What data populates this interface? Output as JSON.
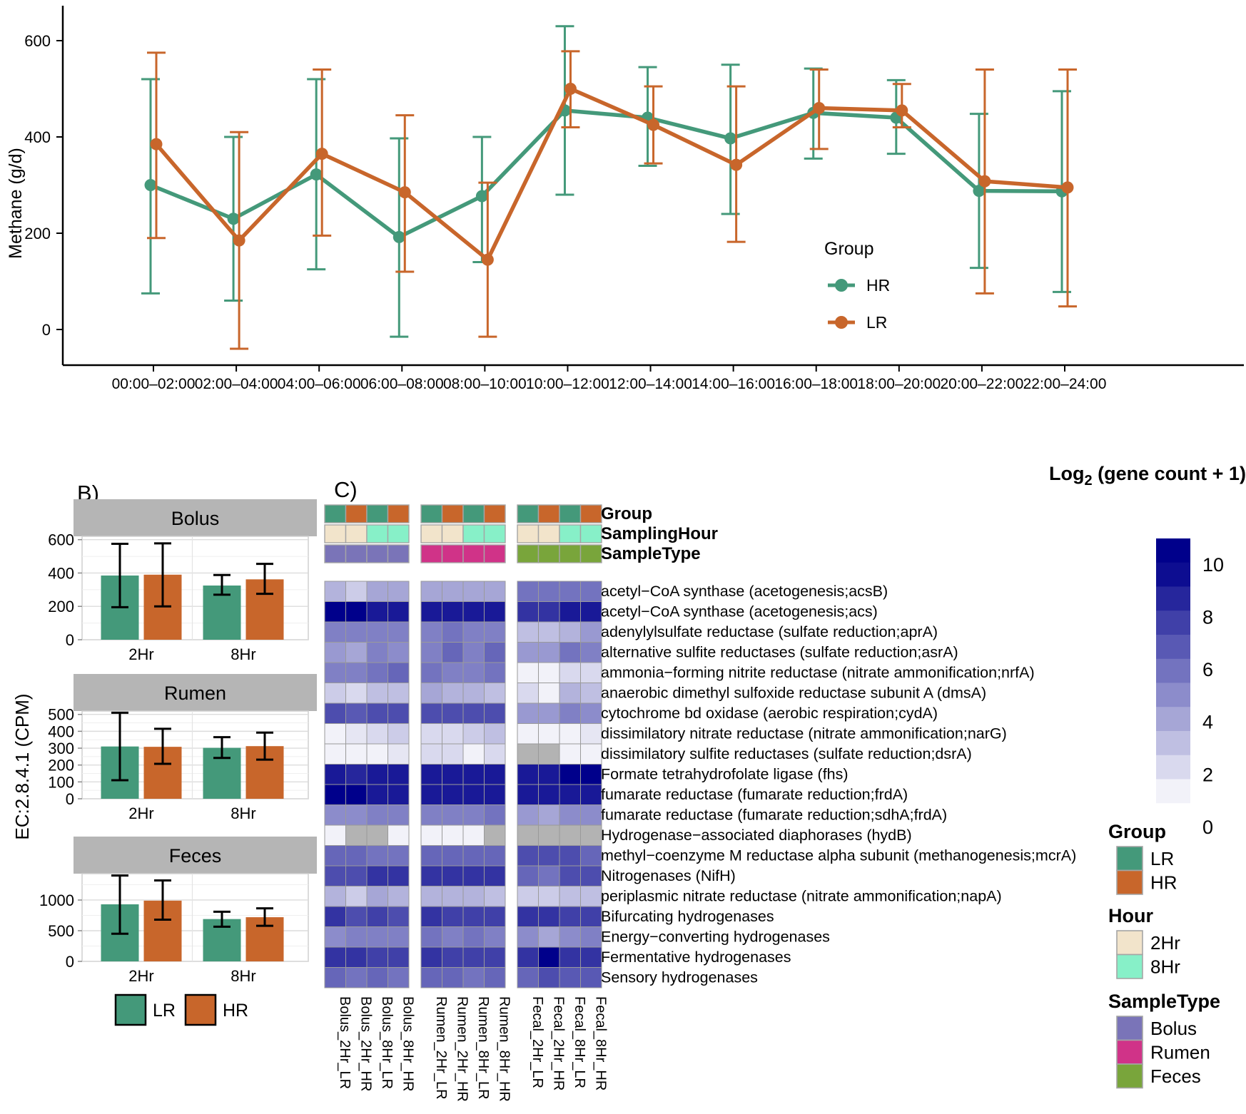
{
  "colors": {
    "green": "#44997A",
    "orange": "#C8662B",
    "heat_low": "#ffffff",
    "heat_high": "#00008B",
    "na_gray": "#b3b3b3",
    "hour_2hr": "#F2E4CB",
    "hour_8hr": "#87F0C8",
    "type_bolus": "#7A74B8",
    "type_rumen": "#D03388",
    "type_feces": "#79A53B",
    "strip_bg": "#B5B5B5",
    "axis_text": "#3d3d3d"
  },
  "chart_data": [
    {
      "id": "methane",
      "type": "line",
      "ylabel": "Methane (g/d)",
      "yticks": [
        0,
        200,
        400,
        600
      ],
      "ylim": [
        -75,
        665
      ],
      "grid": false,
      "legend_title": "Group",
      "legend_position": "inside-right",
      "categories": [
        "00:00–02:00",
        "02:00–04:00",
        "04:00–06:00",
        "06:00–08:00",
        "08:00–10:00",
        "10:00–12:00",
        "12:00–14:00",
        "14:00–16:00",
        "16:00–18:00",
        "18:00–20:00",
        "20:00–22:00",
        "22:00–24:00"
      ],
      "series": [
        {
          "name": "HR",
          "color_key": "green",
          "values": [
            300,
            230,
            322,
            192,
            277,
            455,
            440,
            397,
            450,
            440,
            288,
            287
          ],
          "err_low": [
            75,
            60,
            125,
            -15,
            140,
            280,
            340,
            240,
            355,
            365,
            128,
            78
          ],
          "err_high": [
            520,
            400,
            520,
            397,
            400,
            630,
            545,
            550,
            542,
            518,
            448,
            495
          ]
        },
        {
          "name": "LR",
          "color_key": "orange",
          "values": [
            385,
            185,
            365,
            285,
            145,
            500,
            425,
            342,
            460,
            455,
            308,
            295
          ],
          "err_low": [
            190,
            -40,
            195,
            120,
            -15,
            420,
            345,
            182,
            375,
            420,
            75,
            48
          ],
          "err_high": [
            575,
            410,
            540,
            445,
            305,
            578,
            505,
            505,
            540,
            510,
            540,
            540
          ]
        }
      ]
    },
    {
      "id": "ec_bars",
      "type": "bar",
      "label": "B)",
      "ylabel": "EC:2.8.4.1 (CPM)",
      "categories": [
        "2Hr",
        "8Hr"
      ],
      "facets": [
        {
          "title": "Bolus",
          "yticks": [
            0,
            200,
            400,
            600
          ],
          "ylim": [
            0,
            620
          ],
          "series": [
            {
              "name": "LR",
              "color_key": "green",
              "values": [
                385,
                325
              ],
              "err_low": [
                195,
                270
              ],
              "err_high": [
                575,
                388
              ]
            },
            {
              "name": "HR",
              "color_key": "orange",
              "values": [
                390,
                362
              ],
              "err_low": [
                200,
                275
              ],
              "err_high": [
                578,
                455
              ]
            }
          ]
        },
        {
          "title": "Rumen",
          "yticks": [
            0,
            100,
            200,
            300,
            400,
            500
          ],
          "ylim": [
            0,
            520
          ],
          "series": [
            {
              "name": "LR",
              "color_key": "green",
              "values": [
                310,
                302
              ],
              "err_low": [
                110,
                242
              ],
              "err_high": [
                510,
                365
              ]
            },
            {
              "name": "HR",
              "color_key": "orange",
              "values": [
                308,
                312
              ],
              "err_low": [
                207,
                232
              ],
              "err_high": [
                415,
                392
              ]
            }
          ]
        },
        {
          "title": "Feces",
          "yticks": [
            0,
            500,
            1000
          ],
          "ylim": [
            0,
            1430
          ],
          "series": [
            {
              "name": "LR",
              "color_key": "green",
              "values": [
                930,
                690
              ],
              "err_low": [
                450,
                565
              ],
              "err_high": [
                1400,
                810
              ]
            },
            {
              "name": "HR",
              "color_key": "orange",
              "values": [
                990,
                720
              ],
              "err_low": [
                680,
                580
              ],
              "err_high": [
                1320,
                865
              ]
            }
          ]
        }
      ],
      "legend": [
        {
          "label": "LR",
          "color_key": "green"
        },
        {
          "label": "HR",
          "color_key": "orange"
        }
      ]
    },
    {
      "id": "gene_heatmap",
      "type": "heatmap",
      "label": "C)",
      "annotation_rows": [
        {
          "label": "Group",
          "values": [
            "LR",
            "HR",
            "LR",
            "HR",
            "LR",
            "HR",
            "LR",
            "HR",
            "LR",
            "HR",
            "LR",
            "HR"
          ]
        },
        {
          "label": "SamplingHour",
          "values": [
            "2Hr",
            "2Hr",
            "8Hr",
            "8Hr",
            "2Hr",
            "2Hr",
            "8Hr",
            "8Hr",
            "2Hr",
            "2Hr",
            "8Hr",
            "8Hr"
          ]
        },
        {
          "label": "SampleType",
          "values": [
            "Bolus",
            "Bolus",
            "Bolus",
            "Bolus",
            "Rumen",
            "Rumen",
            "Rumen",
            "Rumen",
            "Feces",
            "Feces",
            "Feces",
            "Feces"
          ]
        }
      ],
      "annotation_color_keys": {
        "LR": "green",
        "HR": "orange",
        "2Hr": "hour_2hr",
        "8Hr": "hour_8hr",
        "Bolus": "type_bolus",
        "Rumen": "type_rumen",
        "Feces": "type_feces"
      },
      "columns": [
        "Bolus_2Hr_LR",
        "Bolus_2Hr_HR",
        "Bolus_8Hr_LR",
        "Bolus_8Hr_HR",
        "Rumen_2Hr_LR",
        "Rumen_2Hr_HR",
        "Rumen_8Hr_LR",
        "Rumen_8Hr_HR",
        "Fecal_2Hr_LR",
        "Fecal_2Hr_HR",
        "Fecal_8Hr_LR",
        "Fecal_8Hr_HR"
      ],
      "rows": [
        "acetyl−CoA synthase (acetogenesis;acsB)",
        "acetyl−CoA synthase (acetogenesis;acs)",
        "adenylylsulfate reductase (sulfate reduction;aprA)",
        "alternative sulfite reductases (sulfate reduction;asrA)",
        "ammonia−forming nitrite reductase (nitrate ammonification;nrfA)",
        "anaerobic dimethyl sulfoxide reductase subunit A (dmsA)",
        "cytochrome bd oxidase (aerobic respiration;cydA)",
        "dissimilatory nitrate reductase (nitrate ammonification;narG)",
        "dissimilatory sulfite reductases (sulfate reduction;dsrA)",
        "Formate tetrahydrofolate ligase (fhs)",
        "fumarate reductase (fumarate reduction;frdA)",
        "fumarate reductase (fumarate reduction;sdhA;frdA)",
        "Hydrogenase−associated diaphorases (hydB)",
        "methyl−coenzyme M reductase alpha subunit (methanogenesis;mcrA)",
        "Nitrogenases (NifH)",
        "periplasmic nitrate reductase (nitrate ammonification;napA)",
        "Bifurcating hydrogenases",
        "Energy−converting hydrogenases",
        "Fermentative hydrogenases",
        "Sensory hydrogenases"
      ],
      "values": [
        [
          3,
          2,
          3.5,
          3.5,
          3.5,
          3.5,
          3.5,
          3.5,
          5.5,
          5.5,
          5.5,
          5.5
        ],
        [
          10,
          10,
          9,
          9,
          9,
          9,
          9,
          9,
          8,
          8,
          9,
          9
        ],
        [
          5,
          5,
          5,
          5,
          5,
          5.5,
          5,
          5,
          2.5,
          2.5,
          3,
          4
        ],
        [
          4,
          3.5,
          5,
          4.5,
          5,
          6,
          5,
          6,
          4,
          4,
          5.5,
          5
        ],
        [
          5,
          5,
          5.5,
          6,
          5.5,
          5,
          5,
          5.5,
          0.5,
          0.5,
          1.5,
          1.5
        ],
        [
          2,
          1.5,
          2.5,
          2.5,
          3.5,
          3,
          3,
          2.5,
          1.5,
          0.5,
          3,
          2.5
        ],
        [
          7,
          6.5,
          7,
          7,
          7,
          7,
          7,
          7,
          4,
          4,
          5,
          4.5
        ],
        [
          0.5,
          1,
          1.5,
          2,
          1.5,
          1.5,
          2,
          2.5,
          0.5,
          0.5,
          0.5,
          1
        ],
        [
          0.5,
          0.5,
          0.5,
          1,
          1.5,
          1.5,
          0.5,
          1.5,
          null,
          null,
          0.5,
          0.5
        ],
        [
          9,
          8.5,
          9,
          9,
          9,
          9,
          9,
          9,
          9,
          9,
          10,
          10
        ],
        [
          10,
          10,
          9,
          9,
          9,
          9,
          9,
          9,
          9,
          9,
          9,
          9
        ],
        [
          4.5,
          4.5,
          5,
          5,
          5,
          5,
          5,
          5.5,
          4,
          3.5,
          4.5,
          4.5
        ],
        [
          0.5,
          null,
          null,
          0.5,
          0.5,
          0.5,
          0.5,
          null,
          null,
          null,
          null,
          null
        ],
        [
          6,
          6,
          5.5,
          5.5,
          6,
          6,
          6,
          6,
          7,
          7,
          7,
          6
        ],
        [
          7,
          7,
          8,
          8,
          8,
          8,
          8,
          8,
          6,
          5.5,
          7,
          7
        ],
        [
          3,
          2,
          3.5,
          3,
          3,
          3,
          3,
          2.5,
          2,
          2,
          2.5,
          2.5
        ],
        [
          8,
          7,
          7.5,
          7,
          8,
          7.5,
          7.5,
          7.5,
          8,
          8,
          7.5,
          7.5
        ],
        [
          4.5,
          5,
          5,
          5,
          5.5,
          5,
          5.5,
          5,
          4.5,
          3.5,
          4.5,
          5
        ],
        [
          8,
          8,
          7.5,
          7.5,
          8,
          7.5,
          7.5,
          7.5,
          8,
          10,
          8,
          8
        ],
        [
          6,
          5.5,
          6,
          5.5,
          6,
          6,
          5.5,
          6,
          6,
          7,
          6.5,
          6.5
        ]
      ],
      "colorbar": {
        "title_prefix": "Log",
        "title_sub": "2",
        "title_suffix": " (gene count + 1)",
        "ticks": [
          10,
          8,
          6,
          4,
          2,
          0
        ],
        "vmin": 0,
        "vmax": 11
      },
      "legends": [
        {
          "title": "Group",
          "items": [
            {
              "label": "LR",
              "color_key": "green"
            },
            {
              "label": "HR",
              "color_key": "orange"
            }
          ]
        },
        {
          "title": "Hour",
          "items": [
            {
              "label": "2Hr",
              "color_key": "hour_2hr"
            },
            {
              "label": "8Hr",
              "color_key": "hour_8hr"
            }
          ]
        },
        {
          "title": "SampleType",
          "items": [
            {
              "label": "Bolus",
              "color_key": "type_bolus"
            },
            {
              "label": "Rumen",
              "color_key": "type_rumen"
            },
            {
              "label": "Feces",
              "color_key": "type_feces"
            }
          ]
        }
      ]
    }
  ]
}
